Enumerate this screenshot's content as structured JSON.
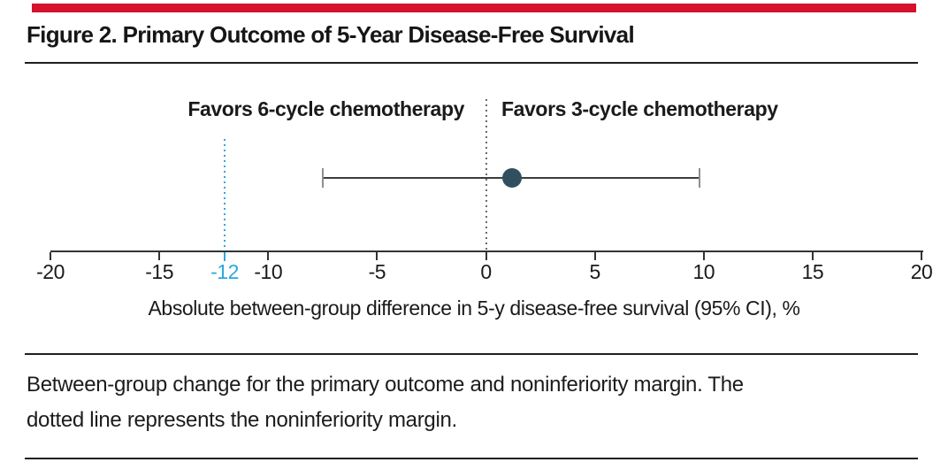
{
  "header": {
    "title": "Figure 2. Primary Outcome of 5-Year Disease-Free Survival"
  },
  "colors": {
    "accent_red": "#d6112e",
    "margin_blue": "#2aa8e0",
    "point_fill": "#30505f",
    "text": "#1a1a1a"
  },
  "chart_data": {
    "type": "scatter",
    "subtype": "forest-plot-single-estimate",
    "title": "Figure 2. Primary Outcome of 5-Year Disease-Free Survival",
    "xlabel": "Absolute between-group difference in 5-y disease-free survival (95% CI), %",
    "xlim": [
      -20,
      20
    ],
    "x_ticks": [
      -20,
      -15,
      -10,
      -5,
      0,
      5,
      10,
      15,
      20
    ],
    "grid": false,
    "legend": false,
    "reference_line_x": 0,
    "noninferiority_margin_x": -12,
    "margin_tick_label": "-12",
    "favors_left": "Favors 6-cycle chemotherapy",
    "favors_right": "Favors 3-cycle chemotherapy",
    "series": [
      {
        "name": "Absolute between-group difference in 5-y disease-free survival",
        "estimate": 1.2,
        "ci_low": -7.5,
        "ci_high": 9.8
      }
    ]
  },
  "footer": {
    "caption_line1": "Between-group change for the primary outcome and noninferiority margin. The",
    "caption_line2": "dotted line represents the noninferiority margin."
  }
}
